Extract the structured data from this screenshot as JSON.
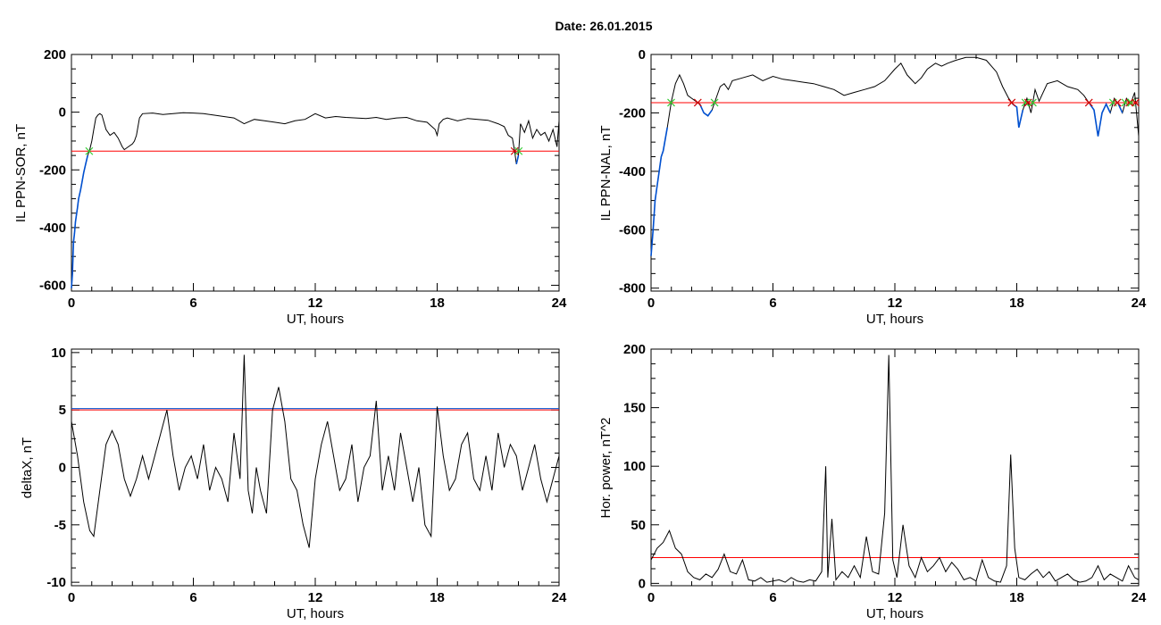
{
  "figure": {
    "title": "Date:  26.01.2015"
  },
  "colors": {
    "data": "#000000",
    "threshold": "#ff0000",
    "highlight": "#0050d0",
    "marker_green": "#33cc33",
    "marker_red": "#cc0000"
  },
  "chart_data": [
    {
      "id": "sor",
      "type": "line",
      "xlabel": "UT, hours",
      "ylabel": "IL PPN-SOR, nT",
      "xlim": [
        0,
        24
      ],
      "ylim": [
        -620,
        200
      ],
      "xticks": [
        "0",
        "6",
        "12",
        "18",
        "24"
      ],
      "yticks": [
        200,
        0,
        -200,
        -400,
        -600
      ],
      "ytick_labels": [
        "200",
        "0",
        "-200",
        "-400",
        "-600"
      ],
      "threshold": -135,
      "series": [
        {
          "x": [
            0,
            0.05,
            0.1,
            0.15,
            0.2,
            0.3,
            0.35,
            0.45,
            0.5,
            0.6,
            0.7,
            0.8,
            0.9,
            1.0,
            1.1,
            1.2,
            1.3,
            1.4,
            1.5,
            1.7,
            1.9,
            2.1,
            2.3,
            2.5,
            2.6,
            2.8,
            3.0,
            3.1,
            3.2,
            3.35,
            3.5,
            4.0,
            4.5,
            5.0,
            5.5,
            6.0,
            6.5,
            7.0,
            7.5,
            8.0,
            8.5,
            9.0,
            9.5,
            10.0,
            10.5,
            11.0,
            11.5,
            12.0,
            12.5,
            13.0,
            13.5,
            14.0,
            14.5,
            15.0,
            15.5,
            16.0,
            16.5,
            17.0,
            17.5,
            17.9,
            18.0,
            18.1,
            18.3,
            18.5,
            19.0,
            19.5,
            20.0,
            20.5,
            21.0,
            21.3,
            21.5,
            21.7,
            21.8,
            21.9,
            22.0,
            22.1,
            22.3,
            22.5,
            22.7,
            22.9,
            23.1,
            23.3,
            23.5,
            23.7,
            23.9,
            24.0
          ],
          "y": [
            -610,
            -560,
            -450,
            -420,
            -380,
            -330,
            -300,
            -270,
            -250,
            -210,
            -180,
            -150,
            -130,
            -100,
            -60,
            -20,
            -10,
            -5,
            -10,
            -60,
            -80,
            -70,
            -90,
            -120,
            -130,
            -120,
            -110,
            -100,
            -80,
            -20,
            -5,
            -3,
            -8,
            -5,
            -2,
            -3,
            -5,
            -10,
            -15,
            -20,
            -40,
            -25,
            -30,
            -35,
            -40,
            -30,
            -25,
            -5,
            -20,
            -15,
            -18,
            -20,
            -22,
            -18,
            -25,
            -20,
            -18,
            -30,
            -35,
            -60,
            -80,
            -40,
            -25,
            -20,
            -30,
            -22,
            -25,
            -28,
            -40,
            -50,
            -80,
            -90,
            -130,
            -180,
            -150,
            -40,
            -70,
            -30,
            -90,
            -60,
            -80,
            -70,
            -100,
            -60,
            -120,
            -30
          ]
        }
      ]
    },
    {
      "id": "nal",
      "type": "line",
      "xlabel": "UT, hours",
      "ylabel": "IL PPN-NAL, nT",
      "xlim": [
        0,
        24
      ],
      "ylim": [
        -810,
        0
      ],
      "xticks": [
        "0",
        "6",
        "12",
        "18",
        "24"
      ],
      "yticks": [
        0,
        -200,
        -400,
        -600,
        -800
      ],
      "ytick_labels": [
        "0",
        "-200",
        "-400",
        "-600",
        "-800"
      ],
      "threshold": -165,
      "series": [
        {
          "x": [
            0,
            0.1,
            0.2,
            0.3,
            0.4,
            0.5,
            0.6,
            0.8,
            1.0,
            1.2,
            1.4,
            1.6,
            1.8,
            2.0,
            2.2,
            2.4,
            2.6,
            2.8,
            3.0,
            3.2,
            3.4,
            3.6,
            3.8,
            4.0,
            4.5,
            5.0,
            5.5,
            6.0,
            6.5,
            7.0,
            7.5,
            8.0,
            8.5,
            9.0,
            9.5,
            10.0,
            10.5,
            11.0,
            11.5,
            12.0,
            12.3,
            12.6,
            13.0,
            13.3,
            13.6,
            14.0,
            14.3,
            14.6,
            15.0,
            15.5,
            16.0,
            16.5,
            17.0,
            17.3,
            17.6,
            17.8,
            18.0,
            18.1,
            18.3,
            18.5,
            18.7,
            18.9,
            19.1,
            19.5,
            20.0,
            20.5,
            21.0,
            21.3,
            21.6,
            21.8,
            22.0,
            22.2,
            22.4,
            22.6,
            22.8,
            23.0,
            23.2,
            23.4,
            23.6,
            23.8,
            24.0
          ],
          "y": [
            -690,
            -600,
            -500,
            -450,
            -400,
            -350,
            -330,
            -250,
            -160,
            -100,
            -70,
            -100,
            -140,
            -150,
            -160,
            -170,
            -200,
            -210,
            -190,
            -150,
            -110,
            -100,
            -120,
            -90,
            -80,
            -70,
            -90,
            -75,
            -85,
            -90,
            -95,
            -100,
            -110,
            -120,
            -140,
            -130,
            -120,
            -110,
            -90,
            -50,
            -30,
            -70,
            -100,
            -80,
            -50,
            -30,
            -40,
            -30,
            -20,
            -10,
            -10,
            -20,
            -60,
            -110,
            -150,
            -170,
            -180,
            -250,
            -190,
            -150,
            -200,
            -120,
            -160,
            -100,
            -90,
            -110,
            -120,
            -140,
            -170,
            -190,
            -280,
            -200,
            -170,
            -200,
            -150,
            -170,
            -200,
            -150,
            -170,
            -130,
            -280
          ]
        }
      ]
    },
    {
      "id": "deltax",
      "type": "line",
      "xlabel": "UT, hours",
      "ylabel": "deltaX, nT",
      "xlim": [
        0,
        24
      ],
      "ylim": [
        -10.3,
        10.3
      ],
      "xticks": [
        "0",
        "6",
        "12",
        "18",
        "24"
      ],
      "yticks": [
        10,
        5,
        0,
        -5,
        -10
      ],
      "ytick_labels": [
        "10",
        "5",
        "0",
        "-5",
        "-10"
      ],
      "threshold": 5,
      "series": [
        {
          "x": [
            0,
            0.3,
            0.6,
            0.9,
            1.1,
            1.4,
            1.7,
            2.0,
            2.3,
            2.6,
            2.9,
            3.2,
            3.5,
            3.8,
            4.1,
            4.4,
            4.7,
            5.0,
            5.3,
            5.6,
            5.9,
            6.2,
            6.5,
            6.8,
            7.1,
            7.4,
            7.7,
            8.0,
            8.3,
            8.5,
            8.7,
            8.9,
            9.1,
            9.3,
            9.6,
            9.9,
            10.2,
            10.5,
            10.8,
            11.1,
            11.4,
            11.7,
            12.0,
            12.3,
            12.6,
            12.9,
            13.2,
            13.5,
            13.8,
            14.1,
            14.4,
            14.7,
            15.0,
            15.3,
            15.6,
            15.9,
            16.2,
            16.5,
            16.8,
            17.1,
            17.4,
            17.7,
            18.0,
            18.3,
            18.6,
            18.9,
            19.2,
            19.5,
            19.8,
            20.1,
            20.4,
            20.7,
            21.0,
            21.3,
            21.6,
            21.9,
            22.2,
            22.5,
            22.8,
            23.1,
            23.4,
            23.7,
            24.0
          ],
          "y": [
            4,
            1,
            -3,
            -5.5,
            -6,
            -2,
            2,
            3.2,
            2,
            -1,
            -2.5,
            -1,
            1,
            -1,
            1,
            3,
            5,
            1,
            -2,
            0,
            1,
            -1,
            2,
            -2,
            0,
            -1,
            -3,
            3,
            -1,
            9.8,
            -2,
            -4,
            0,
            -2,
            -4,
            5,
            7,
            4,
            -1,
            -2,
            -5,
            -7,
            -1,
            2,
            4,
            1,
            -2,
            -1,
            2,
            -3,
            0,
            1,
            5.8,
            -2,
            1,
            -2,
            3,
            0,
            -3,
            0,
            -5,
            -6,
            5.3,
            1,
            -2,
            -1,
            2,
            3,
            -1,
            -2,
            1,
            -2,
            3,
            0,
            2,
            1,
            -2,
            0,
            2,
            -1,
            -3,
            -1,
            1
          ]
        }
      ]
    },
    {
      "id": "power",
      "type": "line",
      "xlabel": "UT, hours",
      "ylabel": "Hor. power, nT^2",
      "xlim": [
        0,
        24
      ],
      "ylim": [
        -2,
        200
      ],
      "xticks": [
        "0",
        "6",
        "12",
        "18",
        "24"
      ],
      "yticks": [
        200,
        150,
        100,
        50,
        0
      ],
      "ytick_labels": [
        "200",
        "150",
        "100",
        "50",
        "0"
      ],
      "threshold": 22,
      "series": [
        {
          "x": [
            0,
            0.3,
            0.6,
            0.9,
            1.2,
            1.5,
            1.8,
            2.1,
            2.4,
            2.7,
            3.0,
            3.3,
            3.6,
            3.9,
            4.2,
            4.5,
            4.8,
            5.1,
            5.4,
            5.7,
            6.0,
            6.3,
            6.6,
            6.9,
            7.2,
            7.5,
            7.8,
            8.1,
            8.4,
            8.6,
            8.7,
            8.9,
            9.1,
            9.4,
            9.7,
            10.0,
            10.3,
            10.6,
            10.9,
            11.2,
            11.5,
            11.7,
            11.9,
            12.1,
            12.4,
            12.7,
            13.0,
            13.3,
            13.6,
            13.9,
            14.2,
            14.5,
            14.8,
            15.1,
            15.4,
            15.7,
            16.0,
            16.3,
            16.6,
            16.9,
            17.2,
            17.5,
            17.7,
            17.9,
            18.1,
            18.4,
            18.7,
            19.0,
            19.3,
            19.6,
            19.9,
            20.2,
            20.5,
            20.8,
            21.1,
            21.4,
            21.7,
            22.0,
            22.3,
            22.6,
            22.9,
            23.2,
            23.5,
            23.8,
            24.0
          ],
          "y": [
            20,
            30,
            35,
            45,
            30,
            25,
            10,
            5,
            3,
            8,
            5,
            12,
            25,
            10,
            8,
            20,
            3,
            2,
            5,
            1,
            2,
            3,
            1,
            5,
            2,
            1,
            3,
            2,
            10,
            100,
            5,
            55,
            3,
            10,
            5,
            15,
            5,
            40,
            10,
            8,
            60,
            195,
            20,
            5,
            50,
            15,
            5,
            22,
            10,
            15,
            22,
            10,
            18,
            12,
            3,
            5,
            2,
            20,
            5,
            2,
            1,
            15,
            110,
            30,
            5,
            3,
            8,
            12,
            5,
            10,
            2,
            5,
            8,
            3,
            1,
            2,
            5,
            15,
            3,
            8,
            5,
            2,
            15,
            5,
            3
          ]
        }
      ]
    }
  ]
}
